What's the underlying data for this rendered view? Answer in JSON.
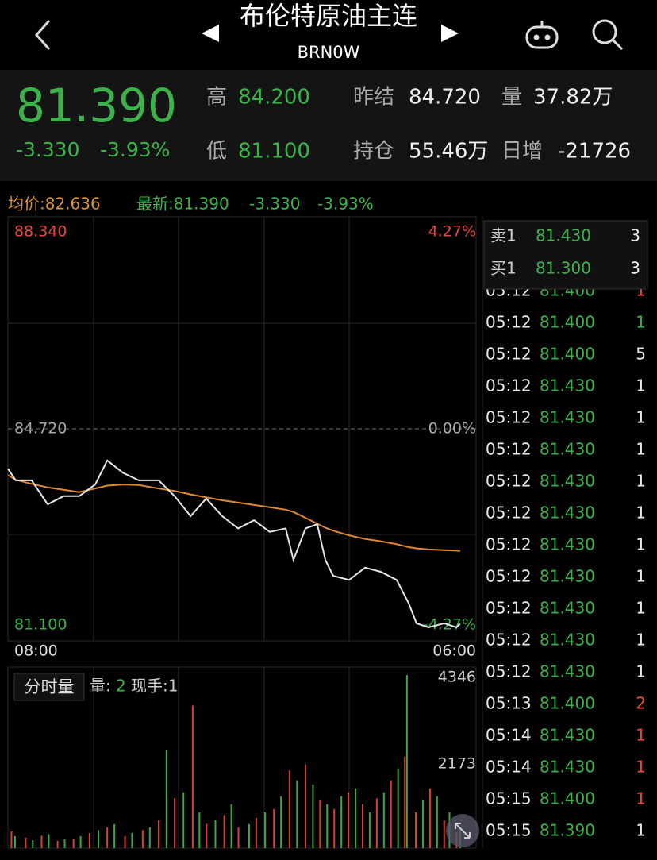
{
  "header": {
    "title": "布伦特原油主连",
    "code": "BRN0W"
  },
  "quote": {
    "price": "81.390",
    "change": "-3.330",
    "change_pct": "-3.93%",
    "high_label": "高",
    "high": "84.200",
    "low_label": "低",
    "low": "81.100",
    "prev_settle_label": "昨结",
    "prev_settle": "84.720",
    "volume_label": "量",
    "volume": "37.82万",
    "open_interest_label": "持仓",
    "open_interest": "55.46万",
    "daily_change_label": "日增",
    "daily_change": "-21726"
  },
  "info_bar": {
    "average": "均价:82.636",
    "latest": "最新:81.390",
    "latest_change": "-3.330",
    "latest_pct": "-3.93%"
  },
  "chart_data": [
    {
      "type": "line",
      "xlim": [
        0,
        1320
      ],
      "xticks": [
        {
          "value": 0,
          "label": "08:00"
        },
        {
          "value": 1320,
          "label": "06:00"
        }
      ],
      "ylim": [
        81.1,
        88.34
      ],
      "yticks": [
        {
          "value": 88.34,
          "label": "88.340"
        },
        {
          "value": 84.72,
          "label": "84.720"
        },
        {
          "value": 81.1,
          "label": "81.100"
        }
      ],
      "y2lim": [
        -4.27,
        4.27
      ],
      "y2ticks": [
        {
          "value": 4.27,
          "label": "4.27%"
        },
        {
          "value": 0,
          "label": "0.00%"
        },
        {
          "value": -4.27,
          "label": "-4.27%"
        }
      ],
      "x": [
        0,
        22,
        67,
        112,
        157,
        201,
        246,
        280,
        324,
        369,
        425,
        470,
        515,
        559,
        604,
        649,
        694,
        738,
        783,
        805,
        839,
        872,
        895,
        917,
        962,
        1007,
        1051,
        1096,
        1130,
        1152,
        1186,
        1230,
        1264,
        1275
      ],
      "series": [
        {
          "color": "#e6e6e6",
          "values": [
            84.04,
            83.84,
            83.84,
            83.43,
            83.57,
            83.57,
            83.77,
            84.18,
            83.97,
            83.84,
            83.84,
            83.57,
            83.23,
            83.53,
            83.23,
            83.02,
            83.16,
            82.96,
            83.02,
            82.48,
            83.02,
            83.09,
            82.48,
            82.21,
            82.14,
            82.35,
            82.28,
            82.14,
            81.74,
            81.4,
            81.33,
            81.4,
            81.33,
            81.39
          ]
        },
        {
          "color": "#e0892e",
          "values": [
            83.93,
            83.85,
            83.78,
            83.72,
            83.68,
            83.64,
            83.7,
            83.75,
            83.77,
            83.76,
            83.7,
            83.66,
            83.6,
            83.55,
            83.5,
            83.46,
            83.42,
            83.38,
            83.34,
            83.3,
            83.2,
            83.1,
            83.03,
            82.98,
            82.9,
            82.84,
            82.8,
            82.75,
            82.7,
            82.68,
            82.66,
            82.65,
            82.64,
            82.636
          ]
        }
      ]
    },
    {
      "type": "bar",
      "label": "分时量",
      "volume_label": "量:",
      "volume": "2",
      "hand": "现手:1",
      "xlim": [
        0,
        1320
      ],
      "ylim": [
        0,
        4346
      ],
      "yticks": [
        2173,
        4346
      ],
      "series": [
        {
          "color": "#d8412f",
          "x": [
            10,
            50,
            95,
            140,
            185,
            230,
            280,
            330,
            380,
            425,
            470,
            521,
            560,
            610,
            650,
            700,
            750,
            794,
            839,
            880,
            920,
            960,
            1000,
            1040,
            1080,
            1119,
            1150,
            1190,
            1230,
            1265
          ],
          "values": [
            420,
            260,
            310,
            180,
            240,
            380,
            520,
            300,
            450,
            700,
            1250,
            3580,
            610,
            830,
            520,
            760,
            980,
            1950,
            2100,
            1200,
            980,
            1400,
            1100,
            1250,
            1700,
            2300,
            900,
            1500,
            700,
            400
          ]
        },
        {
          "color": "#3aa845",
          "x": [
            20,
            70,
            115,
            160,
            205,
            255,
            300,
            350,
            400,
            447,
            495,
            540,
            585,
            630,
            680,
            725,
            770,
            815,
            860,
            900,
            940,
            980,
            1020,
            1060,
            1100,
            1125,
            1170,
            1210,
            1245,
            1275
          ],
          "values": [
            300,
            200,
            350,
            220,
            300,
            450,
            600,
            380,
            520,
            2470,
            1400,
            900,
            700,
            1100,
            600,
            900,
            1300,
            1700,
            1600,
            1100,
            1300,
            1500,
            900,
            1400,
            2000,
            4346,
            1200,
            1300,
            900,
            500
          ]
        }
      ]
    }
  ],
  "order_book": [
    {
      "label": "卖1",
      "price": "81.430",
      "qty": "3"
    },
    {
      "label": "买1",
      "price": "81.300",
      "qty": "3"
    }
  ],
  "trades": [
    {
      "time": "05:12",
      "price": "81.400",
      "qty": "1",
      "color": "#e8473a"
    },
    {
      "time": "05:12",
      "price": "81.400",
      "qty": "1",
      "color": "#3cb34a"
    },
    {
      "time": "05:12",
      "price": "81.400",
      "qty": "5",
      "color": "#e6e6e6"
    },
    {
      "time": "05:12",
      "price": "81.430",
      "qty": "1",
      "color": "#e6e6e6"
    },
    {
      "time": "05:12",
      "price": "81.430",
      "qty": "1",
      "color": "#e6e6e6"
    },
    {
      "time": "05:12",
      "price": "81.430",
      "qty": "1",
      "color": "#e6e6e6"
    },
    {
      "time": "05:12",
      "price": "81.430",
      "qty": "1",
      "color": "#e6e6e6"
    },
    {
      "time": "05:12",
      "price": "81.430",
      "qty": "1",
      "color": "#e6e6e6"
    },
    {
      "time": "05:12",
      "price": "81.430",
      "qty": "1",
      "color": "#e6e6e6"
    },
    {
      "time": "05:12",
      "price": "81.430",
      "qty": "1",
      "color": "#e6e6e6"
    },
    {
      "time": "05:12",
      "price": "81.430",
      "qty": "1",
      "color": "#e6e6e6"
    },
    {
      "time": "05:12",
      "price": "81.430",
      "qty": "1",
      "color": "#e6e6e6"
    },
    {
      "time": "05:12",
      "price": "81.430",
      "qty": "1",
      "color": "#e6e6e6"
    },
    {
      "time": "05:13",
      "price": "81.400",
      "qty": "2",
      "color": "#e8473a"
    },
    {
      "time": "05:14",
      "price": "81.430",
      "qty": "1",
      "color": "#e8473a"
    },
    {
      "time": "05:14",
      "price": "81.430",
      "qty": "1",
      "color": "#e8473a"
    },
    {
      "time": "05:15",
      "price": "81.400",
      "qty": "1",
      "color": "#e8473a"
    },
    {
      "time": "05:15",
      "price": "81.390",
      "qty": "1",
      "color": "#e6e6e6"
    }
  ]
}
